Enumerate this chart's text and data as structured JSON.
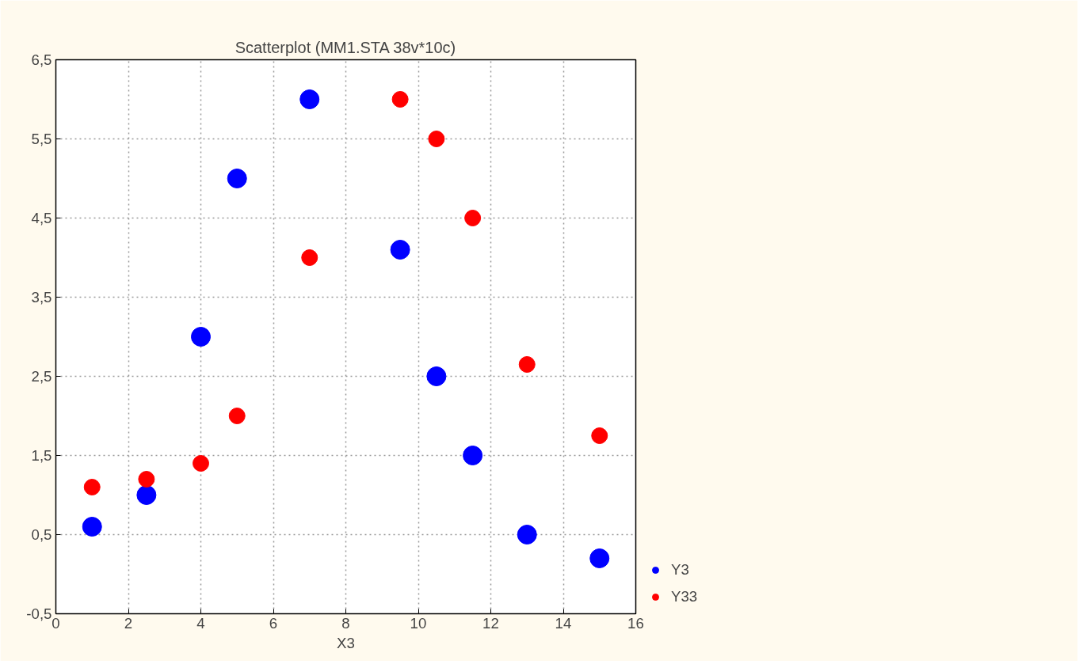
{
  "chart_data": {
    "type": "scatter",
    "title": "Scatterplot (MM1.STA 38v*10c)",
    "xlabel": "X3",
    "x": [
      1,
      2.5,
      4,
      5,
      7,
      9.5,
      10.5,
      11.5,
      13,
      15
    ],
    "series": [
      {
        "name": "Y3",
        "color": "#0000ff",
        "values": [
          0.6,
          1.0,
          3.0,
          5.0,
          6.0,
          4.1,
          2.5,
          1.5,
          0.5,
          0.2
        ]
      },
      {
        "name": "Y33",
        "color": "#ff0000",
        "values": [
          1.1,
          1.2,
          1.4,
          2.0,
          4.0,
          6.0,
          5.5,
          4.5,
          2.65,
          1.75
        ]
      }
    ],
    "xlim": [
      0,
      16
    ],
    "xticks": [
      0,
      2,
      4,
      6,
      8,
      10,
      12,
      14,
      16
    ],
    "ylim": [
      -0.5,
      6.5
    ],
    "yticks": [
      {
        "value": -0.5,
        "label": "-0,5"
      },
      {
        "value": 0.5,
        "label": "0,5"
      },
      {
        "value": 1.5,
        "label": "1,5"
      },
      {
        "value": 2.5,
        "label": "2,5"
      },
      {
        "value": 3.5,
        "label": "3,5"
      },
      {
        "value": 4.5,
        "label": "4,5"
      },
      {
        "value": 5.5,
        "label": "5,5"
      },
      {
        "value": 6.5,
        "label": "6,5"
      }
    ],
    "grid": true,
    "legend": "bottom right",
    "marker": "circle"
  }
}
